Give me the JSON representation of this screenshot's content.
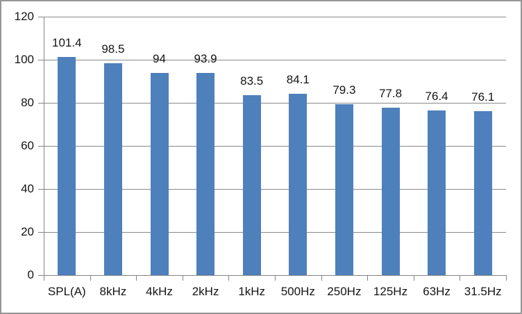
{
  "chart": {
    "frame_border_color": "#969696",
    "background_color": "#FFFFFF"
  },
  "chart_data": {
    "type": "bar",
    "title": "",
    "xlabel": "",
    "ylabel": "",
    "categories": [
      "SPL(A)",
      "8kHz",
      "4kHz",
      "2kHz",
      "1kHz",
      "500Hz",
      "250Hz",
      "125Hz",
      "63Hz",
      "31.5Hz"
    ],
    "values": [
      101.4,
      98.5,
      94,
      93.9,
      83.5,
      84.1,
      79.3,
      77.8,
      76.4,
      76.1
    ],
    "data_labels": [
      "101.4",
      "98.5",
      "94",
      "93.9",
      "83.5",
      "84.1",
      "79.3",
      "77.8",
      "76.4",
      "76.1"
    ],
    "ylim": [
      0,
      120
    ],
    "ytick_step": 20,
    "ytick_labels": [
      "0",
      "20",
      "40",
      "60",
      "80",
      "100",
      "120"
    ],
    "grid": true,
    "legend": false,
    "bar_color": "#4E80BC",
    "gridline_color": "#898989",
    "axis_color": "#848484",
    "text_color": "#141414"
  }
}
